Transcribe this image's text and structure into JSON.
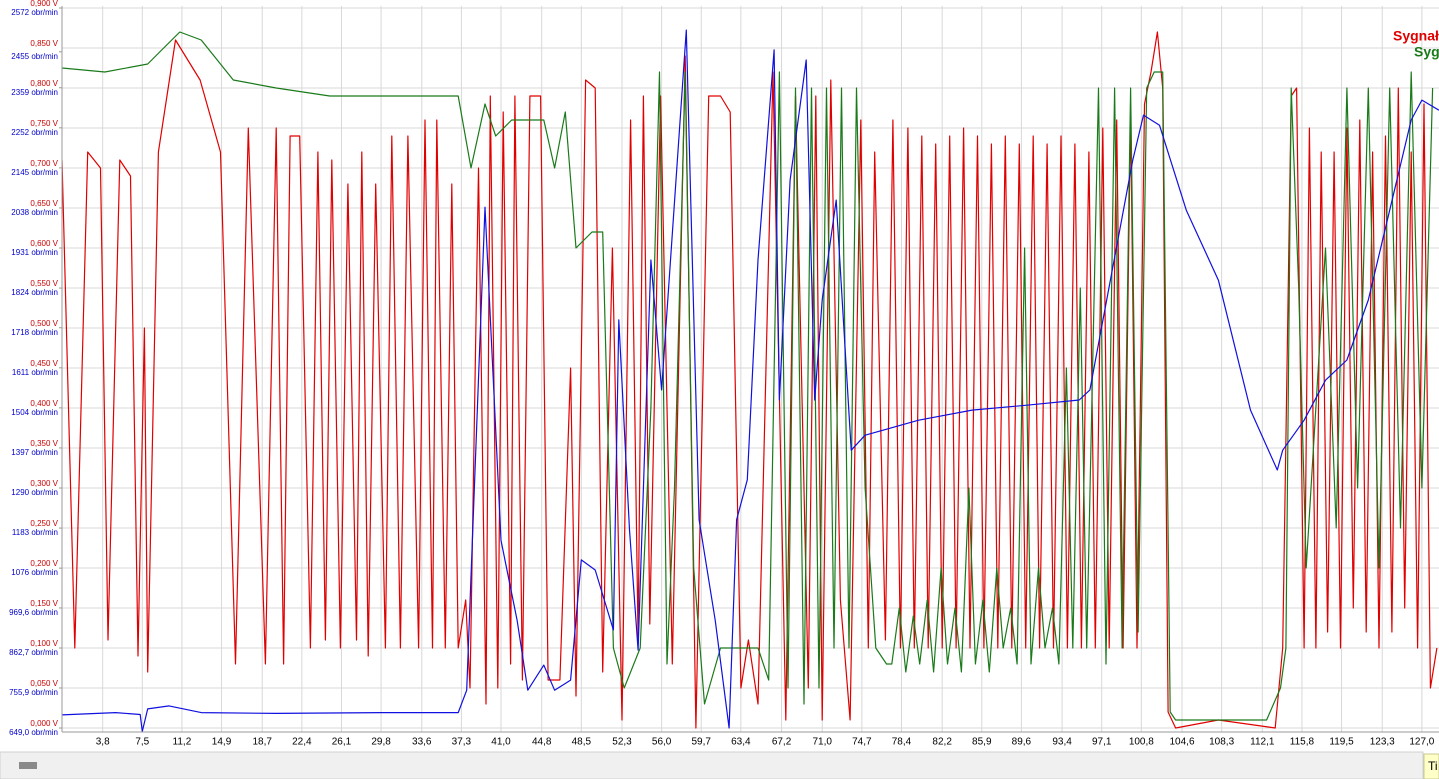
{
  "chart_data": {
    "type": "line",
    "xlim": [
      0,
      128.6
    ],
    "xticks": [
      {
        "value": 3.8,
        "label": "3,8"
      },
      {
        "value": 7.5,
        "label": "7,5"
      },
      {
        "value": 11.2,
        "label": "11,2"
      },
      {
        "value": 14.9,
        "label": "14,9"
      },
      {
        "value": 18.7,
        "label": "18,7"
      },
      {
        "value": 22.4,
        "label": "22,4"
      },
      {
        "value": 26.1,
        "label": "26,1"
      },
      {
        "value": 29.8,
        "label": "29,8"
      },
      {
        "value": 33.6,
        "label": "33,6"
      },
      {
        "value": 37.3,
        "label": "37,3"
      },
      {
        "value": 41.0,
        "label": "41,0"
      },
      {
        "value": 44.8,
        "label": "44,8"
      },
      {
        "value": 48.5,
        "label": "48,5"
      },
      {
        "value": 52.3,
        "label": "52,3"
      },
      {
        "value": 56.0,
        "label": "56,0"
      },
      {
        "value": 59.7,
        "label": "59,7"
      },
      {
        "value": 63.4,
        "label": "63,4"
      },
      {
        "value": 67.2,
        "label": "67,2"
      },
      {
        "value": 71.0,
        "label": "71,0"
      },
      {
        "value": 74.7,
        "label": "74,7"
      },
      {
        "value": 78.4,
        "label": "78,4"
      },
      {
        "value": 82.2,
        "label": "82,2"
      },
      {
        "value": 85.9,
        "label": "85,9"
      },
      {
        "value": 89.6,
        "label": "89,6"
      },
      {
        "value": 93.4,
        "label": "93,4"
      },
      {
        "value": 97.1,
        "label": "97,1"
      },
      {
        "value": 100.8,
        "label": "100,8"
      },
      {
        "value": 104.6,
        "label": "104,6"
      },
      {
        "value": 108.3,
        "label": "108,3"
      },
      {
        "value": 112.1,
        "label": "112,1"
      },
      {
        "value": 115.8,
        "label": "115,8"
      },
      {
        "value": 119.5,
        "label": "119,5"
      },
      {
        "value": 123.3,
        "label": "123,3"
      },
      {
        "value": 127.0,
        "label": "127,0"
      }
    ],
    "ylim": [
      0,
      0.9
    ],
    "yticks": [
      {
        "value": 0,
        "label": "0,000 V"
      },
      {
        "value": 0.05,
        "label": "0,050 V"
      },
      {
        "value": 0.1,
        "label": "0,100 V"
      },
      {
        "value": 0.15,
        "label": "0,150 V"
      },
      {
        "value": 0.2,
        "label": "0,200 V"
      },
      {
        "value": 0.25,
        "label": "0,250 V"
      },
      {
        "value": 0.3,
        "label": "0,300 V"
      },
      {
        "value": 0.35,
        "label": "0,350 V"
      },
      {
        "value": 0.4,
        "label": "0,400 V"
      },
      {
        "value": 0.45,
        "label": "0,450 V"
      },
      {
        "value": 0.5,
        "label": "0,500 V"
      },
      {
        "value": 0.55,
        "label": "0,550 V"
      },
      {
        "value": 0.6,
        "label": "0,600 V"
      },
      {
        "value": 0.65,
        "label": "0,650 V"
      },
      {
        "value": 0.7,
        "label": "0,700 V"
      },
      {
        "value": 0.75,
        "label": "0,750 V"
      },
      {
        "value": 0.8,
        "label": "0,800 V"
      },
      {
        "value": 0.85,
        "label": "0,850 V"
      },
      {
        "value": 0.9,
        "label": "0,900 V"
      }
    ],
    "y2lim": [
      649,
      2572
    ],
    "y2ticks": [
      {
        "value": 649.0,
        "label": "649,0 obr/min"
      },
      {
        "value": 755.9,
        "label": "755,9 obr/min"
      },
      {
        "value": 862.7,
        "label": "862,7 obr/min"
      },
      {
        "value": 969.6,
        "label": "969,6 obr/min"
      },
      {
        "value": 1076,
        "label": "1076 obr/min"
      },
      {
        "value": 1183,
        "label": "1183 obr/min"
      },
      {
        "value": 1290,
        "label": "1290 obr/min"
      },
      {
        "value": 1397,
        "label": "1397 obr/min"
      },
      {
        "value": 1504,
        "label": "1504 obr/min"
      },
      {
        "value": 1611,
        "label": "1611 obr/min"
      },
      {
        "value": 1718,
        "label": "1718 obr/min"
      },
      {
        "value": 1824,
        "label": "1824 obr/min"
      },
      {
        "value": 1931,
        "label": "1931 obr/min"
      },
      {
        "value": 2038,
        "label": "2038 obr/min"
      },
      {
        "value": 2145,
        "label": "2145 obr/min"
      },
      {
        "value": 2252,
        "label": "2252 obr/min"
      },
      {
        "value": 2359,
        "label": "2359 obr/min"
      },
      {
        "value": 2455,
        "label": "2455 obr/min"
      },
      {
        "value": 2572,
        "label": "2572 obr/min"
      }
    ],
    "grid": true,
    "series": [
      {
        "name": "Sygnał",
        "color": "#e00000",
        "x": [
          0,
          1.2,
          2.4,
          3.6,
          4.3,
          5.4,
          6.4,
          7.1,
          7.7,
          8.0,
          9.0,
          10.6,
          12.9,
          14.8,
          16.2,
          17.4,
          19.0,
          20.0,
          20.7,
          21.3,
          22.2,
          23.2,
          23.9,
          24.6,
          25.2,
          26.0,
          26.7,
          27.5,
          28.0,
          28.6,
          29.3,
          30.2,
          30.8,
          31.6,
          32.3,
          33.3,
          33.9,
          34.6,
          35.0,
          35.8,
          36.4,
          37.0,
          37.7,
          38.1,
          38.9,
          39.6,
          40.0,
          40.7,
          41.2,
          41.9,
          42.3,
          43.0,
          43.7,
          44.7,
          45.4,
          46.5,
          47.5,
          48.0,
          48.9,
          49.8,
          50.5,
          51.4,
          52.3,
          53.1,
          53.8,
          54.3,
          54.9,
          55.9,
          57.0,
          58.2,
          59.2,
          60.4,
          61.5,
          62.4,
          63.4,
          64.1,
          65.0,
          66.4,
          67.6,
          68.5,
          69.7,
          70.4,
          71.0,
          71.8,
          72.7,
          73.6,
          74.6,
          75.3,
          75.9,
          76.9,
          77.6,
          78.3,
          79.0,
          79.6,
          80.3,
          80.9,
          81.6,
          82.2,
          82.9,
          83.5,
          84.2,
          84.8,
          85.5,
          86.1,
          86.8,
          87.4,
          88.1,
          88.7,
          89.4,
          90.0,
          90.7,
          91.3,
          92.0,
          92.6,
          93.3,
          93.9,
          94.6,
          95.2,
          95.9,
          96.5,
          97.2,
          97.8,
          98.5,
          99.1,
          99.8,
          100.4,
          101.1,
          101.7,
          102.3,
          102.8,
          103.3,
          104.0,
          108.0,
          113.3,
          114.0,
          114.8,
          115.3,
          116.0,
          116.5,
          117.1,
          117.6,
          118.2,
          118.8,
          119.4,
          120.0,
          120.6,
          121.2,
          121.8,
          122.4,
          123.0,
          123.6,
          124.2,
          124.8,
          125.4,
          126.0,
          126.6,
          127.2,
          127.8,
          128.4
        ],
        "values": [
          0.71,
          0.1,
          0.72,
          0.7,
          0.11,
          0.71,
          0.69,
          0.09,
          0.5,
          0.07,
          0.72,
          0.86,
          0.81,
          0.72,
          0.08,
          0.75,
          0.08,
          0.75,
          0.08,
          0.74,
          0.74,
          0.1,
          0.72,
          0.11,
          0.71,
          0.1,
          0.68,
          0.11,
          0.72,
          0.09,
          0.68,
          0.1,
          0.74,
          0.1,
          0.74,
          0.1,
          0.76,
          0.1,
          0.76,
          0.1,
          0.68,
          0.1,
          0.16,
          0.05,
          0.7,
          0.03,
          0.79,
          0.05,
          0.77,
          0.08,
          0.79,
          0.06,
          0.79,
          0.79,
          0.06,
          0.06,
          0.45,
          0.04,
          0.81,
          0.8,
          0.07,
          0.6,
          0.01,
          0.76,
          0.11,
          0.79,
          0.13,
          0.79,
          0.08,
          0.84,
          0.0,
          0.79,
          0.79,
          0.77,
          0.05,
          0.11,
          0.03,
          0.82,
          0.01,
          0.79,
          0.05,
          0.79,
          0.01,
          0.81,
          0.16,
          0.01,
          0.76,
          0.1,
          0.72,
          0.11,
          0.76,
          0.1,
          0.75,
          0.1,
          0.74,
          0.1,
          0.73,
          0.1,
          0.74,
          0.1,
          0.75,
          0.1,
          0.74,
          0.1,
          0.73,
          0.1,
          0.74,
          0.1,
          0.73,
          0.1,
          0.74,
          0.1,
          0.73,
          0.1,
          0.74,
          0.1,
          0.73,
          0.1,
          0.72,
          0.1,
          0.75,
          0.1,
          0.76,
          0.1,
          0.77,
          0.1,
          0.78,
          0.82,
          0.87,
          0.8,
          0.02,
          0.0,
          0.01,
          0.0,
          0.1,
          0.79,
          0.8,
          0.1,
          0.75,
          0.1,
          0.72,
          0.12,
          0.72,
          0.1,
          0.75,
          0.15,
          0.76,
          0.12,
          0.72,
          0.1,
          0.74,
          0.12,
          0.8,
          0.15,
          0.72,
          0.1,
          0.78,
          0.05,
          0.1
        ]
      },
      {
        "name": "Syg",
        "color": "#1a7a1a",
        "x": [
          0,
          4,
          8,
          9.5,
          11,
          13,
          16,
          20,
          25,
          30,
          37,
          38.2,
          39.5,
          40.5,
          42,
          45,
          46,
          47,
          48.0,
          49.5,
          50.5,
          51.5,
          52.5,
          54,
          55,
          55.8,
          56.5,
          57.2,
          58.2,
          59.0,
          60.0,
          61.5,
          63.5,
          65,
          66,
          67,
          67.8,
          68.5,
          69.3,
          70.0,
          70.7,
          71.4,
          72.1,
          72.8,
          73.5,
          74.2,
          75,
          76,
          77,
          77.5,
          78.2,
          78.8,
          79.5,
          80.1,
          80.8,
          81.4,
          82.1,
          82.7,
          83.4,
          84.0,
          84.7,
          85.3,
          86.0,
          86.6,
          87.3,
          87.9,
          88.6,
          89.2,
          89.9,
          90.5,
          91.2,
          91.8,
          92.5,
          93.1,
          93.8,
          94.4,
          95.1,
          95.7,
          96.8,
          97.5,
          98.3,
          99,
          99.8,
          100.5,
          101.3,
          102,
          102.8,
          103.5,
          104,
          112.5,
          113.8,
          114.3,
          114.8,
          115.5,
          116.2,
          118,
          119,
          120,
          121,
          122,
          123,
          124,
          125,
          126,
          127,
          128
        ],
        "values": [
          0.825,
          0.82,
          0.83,
          0.85,
          0.87,
          0.86,
          0.81,
          0.8,
          0.79,
          0.79,
          0.79,
          0.7,
          0.78,
          0.74,
          0.76,
          0.76,
          0.7,
          0.77,
          0.6,
          0.62,
          0.62,
          0.1,
          0.05,
          0.1,
          0.4,
          0.82,
          0.08,
          0.3,
          0.82,
          0.2,
          0.03,
          0.1,
          0.1,
          0.1,
          0.06,
          0.82,
          0.05,
          0.8,
          0.03,
          0.8,
          0.05,
          0.8,
          0.1,
          0.8,
          0.1,
          0.8,
          0.3,
          0.1,
          0.08,
          0.08,
          0.15,
          0.07,
          0.14,
          0.08,
          0.16,
          0.07,
          0.2,
          0.08,
          0.15,
          0.07,
          0.3,
          0.08,
          0.16,
          0.07,
          0.2,
          0.1,
          0.15,
          0.08,
          0.6,
          0.08,
          0.2,
          0.1,
          0.15,
          0.08,
          0.45,
          0.1,
          0.55,
          0.1,
          0.8,
          0.08,
          0.8,
          0.1,
          0.8,
          0.12,
          0.8,
          0.82,
          0.82,
          0.02,
          0.01,
          0.01,
          0.05,
          0.1,
          0.8,
          0.55,
          0.2,
          0.6,
          0.25,
          0.8,
          0.3,
          0.8,
          0.2,
          0.8,
          0.25,
          0.82,
          0.3,
          0.8
        ]
      },
      {
        "color": "#1010e0",
        "axis": "y2",
        "x": [
          0,
          5,
          7.3,
          7.5,
          8,
          10,
          13,
          20,
          30,
          37,
          37.8,
          39.5,
          41,
          42.5,
          43.5,
          45,
          46,
          47.5,
          48.5,
          49.8,
          51.5,
          52,
          53,
          53.8,
          55,
          56,
          58.3,
          59.5,
          61,
          62.3,
          63,
          64,
          65,
          66.5,
          67,
          68,
          69.5,
          70.3,
          71,
          72.3,
          73.7,
          75,
          80,
          85,
          90,
          95,
          96,
          100,
          101,
          102.5,
          105,
          108,
          111,
          113.5,
          114,
          116,
          118,
          120,
          122,
          124,
          126,
          127,
          128.6
        ],
        "values": [
          684,
          690,
          685,
          640,
          700,
          708,
          690,
          688,
          690,
          690,
          750,
          2040,
          1150,
          937,
          750,
          817,
          750,
          777,
          1098,
          1071,
          911,
          1739,
          1178,
          857,
          1899,
          1552,
          2513,
          1205,
          937,
          649,
          1205,
          1312,
          1899,
          2460,
          1525,
          2112,
          2433,
          1525,
          1792,
          2059,
          1391,
          1431,
          1471,
          1498,
          1511,
          1525,
          1552,
          2166,
          2286,
          2259,
          2032,
          1845,
          1498,
          1338,
          1391,
          1471,
          1578,
          1632,
          1792,
          2032,
          2273,
          2326,
          2299
        ]
      }
    ]
  },
  "ui": {
    "corner_label": "Ti"
  }
}
